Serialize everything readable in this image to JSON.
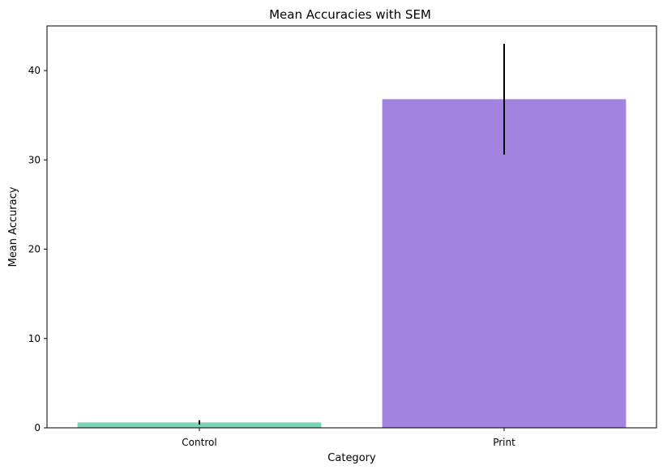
{
  "chart_data": {
    "type": "bar",
    "title": "Mean Accuracies with SEM",
    "xlabel": "Category",
    "ylabel": "Mean Accuracy",
    "categories": [
      "Control",
      "Print"
    ],
    "values": [
      0.6,
      36.8
    ],
    "errors": [
      0.25,
      6.2
    ],
    "colors": [
      "#7dd3b4",
      "#a284e0"
    ],
    "ylim": [
      0,
      45
    ],
    "yticks": [
      0,
      10,
      20,
      30,
      40
    ],
    "grid": false,
    "legend": "none"
  }
}
